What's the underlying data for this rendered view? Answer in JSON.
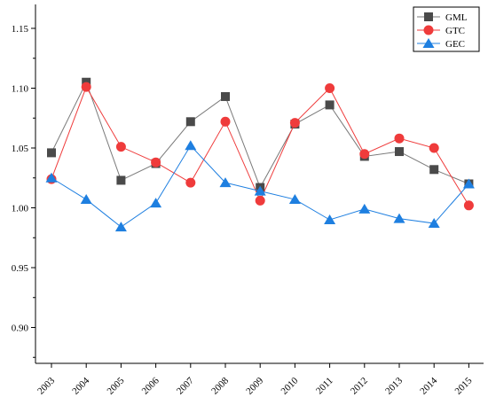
{
  "chart_data": {
    "type": "line",
    "title": "",
    "xlabel": "",
    "ylabel": "",
    "x": [
      "2003",
      "2004",
      "2005",
      "2006",
      "2007",
      "2008",
      "2009",
      "2010",
      "2011",
      "2012",
      "2013",
      "2014",
      "2015"
    ],
    "ylim": [
      0.87,
      1.17
    ],
    "yticks": [
      "0.90",
      "0.95",
      "1.00",
      "1.05",
      "1.10",
      "1.15"
    ],
    "grid": false,
    "legend_position": "top-right",
    "series": [
      {
        "name": "GML",
        "marker": "square",
        "color": "#4a4a4a",
        "line_color": "#7a7a7a",
        "values": [
          1.046,
          1.105,
          1.023,
          1.037,
          1.072,
          1.093,
          1.017,
          1.07,
          1.086,
          1.043,
          1.047,
          1.032,
          1.02
        ]
      },
      {
        "name": "GTC",
        "marker": "circle",
        "color": "#ef3b3b",
        "line_color": "#ef3b3b",
        "values": [
          1.024,
          1.101,
          1.051,
          1.038,
          1.021,
          1.072,
          1.006,
          1.071,
          1.1,
          1.045,
          1.058,
          1.05,
          1.002
        ]
      },
      {
        "name": "GEC",
        "marker": "triangle",
        "color": "#1e7fe0",
        "line_color": "#1e7fe0",
        "values": [
          1.025,
          1.007,
          0.984,
          1.004,
          1.052,
          1.021,
          1.014,
          1.007,
          0.99,
          0.999,
          0.991,
          0.987,
          1.02
        ]
      }
    ]
  }
}
